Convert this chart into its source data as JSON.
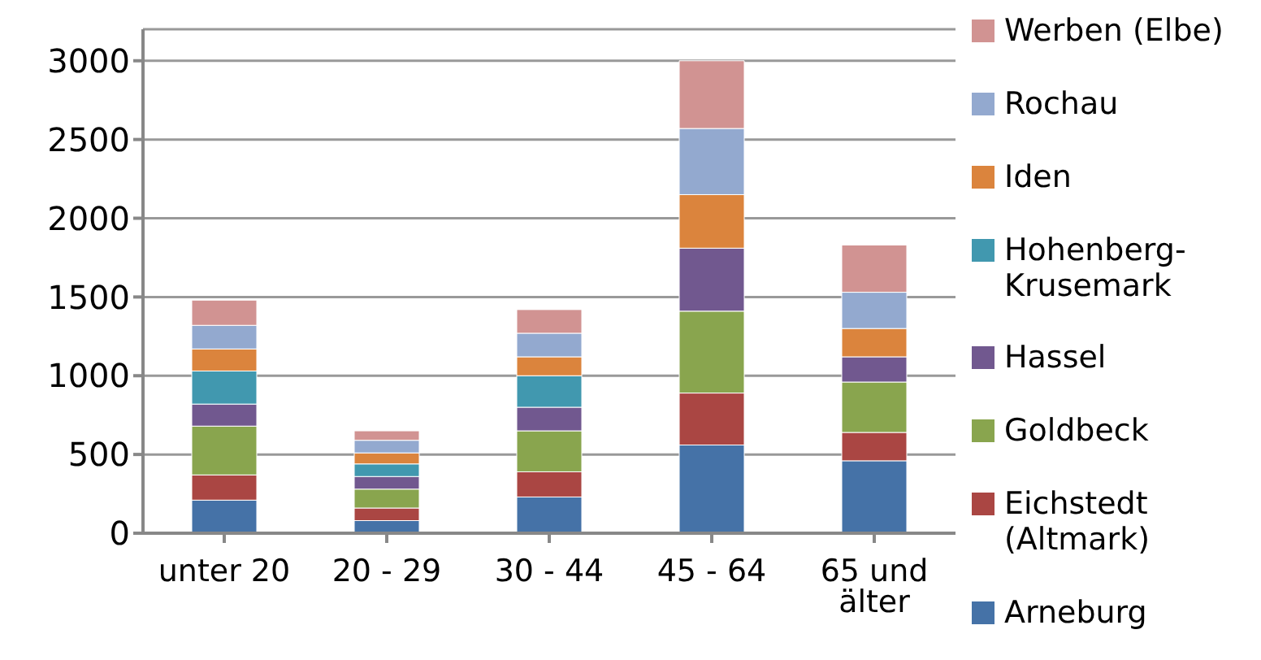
{
  "chart_data": {
    "type": "bar",
    "stacked": true,
    "categories": [
      "unter 20",
      "20 - 29",
      "30 - 44",
      "45 - 64",
      "65 und älter"
    ],
    "series": [
      {
        "name": "Arneburg",
        "color": "#4572a7",
        "values": [
          210,
          80,
          230,
          560,
          460
        ]
      },
      {
        "name": "Eichstedt (Altmark)",
        "color": "#aa4643",
        "values": [
          160,
          80,
          160,
          330,
          180
        ]
      },
      {
        "name": "Goldbeck",
        "color": "#89a54e",
        "values": [
          310,
          120,
          260,
          520,
          320
        ]
      },
      {
        "name": "Hassel",
        "color": "#71588f",
        "values": [
          140,
          80,
          150,
          400,
          160
        ]
      },
      {
        "name": "Hohenberg-Krusemark",
        "color": "#4198af",
        "values": [
          210,
          80,
          200,
          null,
          null
        ]
      },
      {
        "name": "Iden",
        "color": "#db843d",
        "values": [
          140,
          70,
          120,
          340,
          180
        ]
      },
      {
        "name": "Rochau",
        "color": "#93a9cf",
        "values": [
          150,
          80,
          150,
          420,
          230
        ]
      },
      {
        "name": "Werben (Elbe)",
        "color": "#d19392",
        "values": [
          160,
          60,
          150,
          430,
          300
        ]
      }
    ],
    "ylim": [
      0,
      3200
    ],
    "yticks": [
      0,
      500,
      1000,
      1500,
      2000,
      2500,
      3000
    ],
    "grid": "y",
    "legend": "right"
  }
}
